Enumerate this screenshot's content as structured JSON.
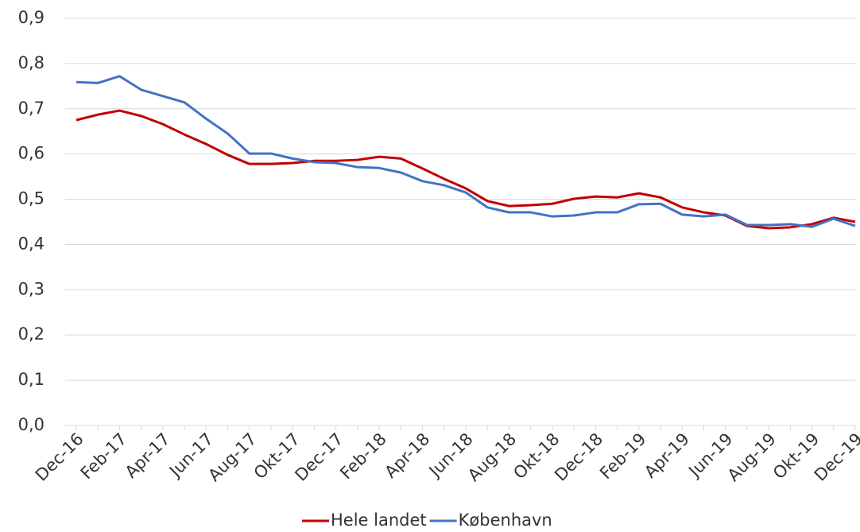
{
  "chart_data": {
    "type": "line",
    "categories": [
      "Dec-16",
      null,
      "Feb-17",
      null,
      "Apr-17",
      null,
      "Jun-17",
      null,
      "Aug-17",
      null,
      "Okt-17",
      null,
      "Dec-17",
      null,
      "Feb-18",
      null,
      "Apr-18",
      null,
      "Jun-18",
      null,
      "Aug-18",
      null,
      "Okt-18",
      null,
      "Dec-18",
      null,
      "Feb-19",
      null,
      "Apr-19",
      null,
      "Jun-19",
      null,
      "Aug-19",
      null,
      "Okt-19",
      null,
      "Dec-19"
    ],
    "series": [
      {
        "name": "Hele landet",
        "color": "#c00000",
        "values": [
          0.675,
          0.687,
          0.696,
          0.684,
          0.666,
          0.643,
          0.622,
          0.598,
          0.578,
          0.578,
          0.58,
          0.585,
          0.585,
          0.587,
          0.594,
          0.59,
          0.568,
          0.545,
          0.524,
          0.496,
          0.485,
          0.487,
          0.49,
          0.501,
          0.506,
          0.504,
          0.513,
          0.504,
          0.482,
          0.471,
          0.464,
          0.441,
          0.436,
          0.438,
          0.445,
          0.459,
          0.45
        ]
      },
      {
        "name": "København",
        "color": "#4472c4",
        "values": [
          0.759,
          0.757,
          0.772,
          0.742,
          0.728,
          0.714,
          0.678,
          0.645,
          0.601,
          0.601,
          0.59,
          0.582,
          0.58,
          0.571,
          0.569,
          0.559,
          0.54,
          0.531,
          0.515,
          0.482,
          0.471,
          0.471,
          0.462,
          0.464,
          0.471,
          0.471,
          0.489,
          0.49,
          0.466,
          0.462,
          0.466,
          0.443,
          0.443,
          0.445,
          0.439,
          0.457,
          0.441
        ]
      }
    ],
    "ylim": [
      0,
      0.9
    ],
    "yticks": [
      {
        "value": 0,
        "label": "0,0"
      },
      {
        "value": 0.1,
        "label": "0,1"
      },
      {
        "value": 0.2,
        "label": "0,2"
      },
      {
        "value": 0.3,
        "label": "0,3"
      },
      {
        "value": 0.4,
        "label": "0,4"
      },
      {
        "value": 0.5,
        "label": "0,5"
      },
      {
        "value": 0.6,
        "label": "0,6"
      },
      {
        "value": 0.7,
        "label": "0,7"
      },
      {
        "value": 0.8,
        "label": "0,8"
      },
      {
        "value": 0.9,
        "label": "0,9"
      }
    ],
    "grid": true,
    "legend": "bottom"
  }
}
